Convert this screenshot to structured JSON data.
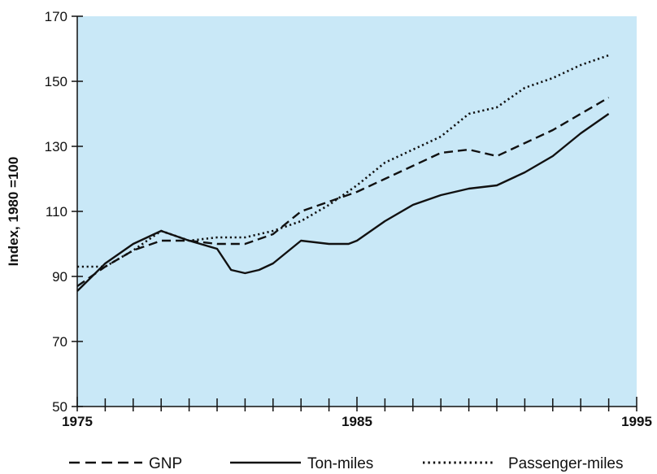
{
  "chart_data": {
    "type": "line",
    "title": "",
    "xlabel": "",
    "ylabel": "Index, 1980 =100",
    "xlim": [
      1975,
      1995
    ],
    "ylim": [
      50,
      170
    ],
    "x_ticks": [
      {
        "value": 1975,
        "label": "1975"
      },
      {
        "value": 1985,
        "label": "1985"
      },
      {
        "value": 1995,
        "label": "1995"
      }
    ],
    "y_ticks": [
      {
        "value": 50,
        "label": "50"
      },
      {
        "value": 70,
        "label": "70"
      },
      {
        "value": 90,
        "label": "90"
      },
      {
        "value": 110,
        "label": "110"
      },
      {
        "value": 130,
        "label": "130"
      },
      {
        "value": 150,
        "label": "150"
      },
      {
        "value": 170,
        "label": "170"
      }
    ],
    "plot_background": "#c9e8f7",
    "legend_position": "bottom",
    "series": [
      {
        "name": "GNP",
        "style": "dashed",
        "x": [
          1975,
          1976,
          1977,
          1978,
          1979,
          1980,
          1981,
          1982,
          1983,
          1984,
          1985,
          1986,
          1987,
          1988,
          1989,
          1990,
          1991,
          1992,
          1993,
          1994
        ],
        "values": [
          87,
          93,
          98,
          101,
          101,
          100,
          100,
          103,
          110,
          113,
          116,
          120,
          124,
          128,
          129,
          127,
          131,
          135,
          140,
          145
        ]
      },
      {
        "name": "Ton-miles",
        "style": "solid",
        "x": [
          1975,
          1976,
          1977,
          1978,
          1979,
          1980,
          1980.5,
          1981,
          1981.5,
          1982,
          1983,
          1984,
          1984.7,
          1985,
          1986,
          1987,
          1988,
          1989,
          1990,
          1991,
          1992,
          1993,
          1994
        ],
        "values": [
          85.5,
          94,
          100,
          104,
          101,
          98.5,
          92,
          91,
          92,
          94,
          101,
          100,
          100,
          101,
          107,
          112,
          115,
          117,
          118,
          122,
          127,
          134,
          140
        ]
      },
      {
        "name": "Passenger-miles",
        "style": "dotted",
        "x": [
          1975,
          1976,
          1977,
          1978,
          1979,
          1980,
          1981,
          1982,
          1983,
          1984,
          1985,
          1986,
          1987,
          1988,
          1989,
          1990,
          1991,
          1992,
          1993,
          1994
        ],
        "values": [
          93,
          93,
          98,
          104,
          101,
          102,
          102,
          104,
          107,
          112,
          118,
          125,
          129,
          133,
          140,
          142,
          148,
          151,
          155,
          158
        ]
      }
    ]
  }
}
